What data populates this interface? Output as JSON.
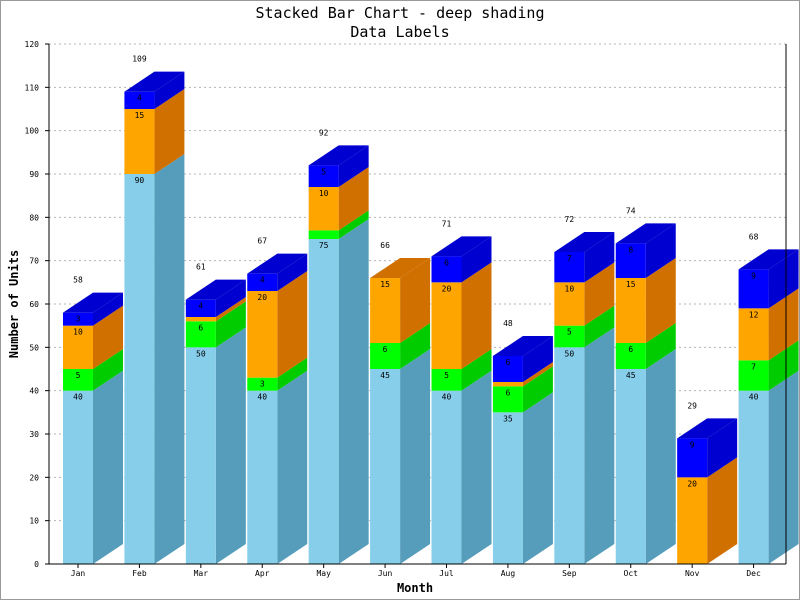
{
  "chart_data": {
    "type": "bar",
    "stacked": true,
    "title": "Stacked Bar Chart - deep shading",
    "subtitle": "Data Labels",
    "xlabel": "Month",
    "ylabel": "Number of Units",
    "ylim": [
      0,
      120
    ],
    "ytick_step": 10,
    "grid": "horizontal dashed",
    "categories": [
      "Jan",
      "Feb",
      "Mar",
      "Apr",
      "May",
      "Jun",
      "Jul",
      "Aug",
      "Sep",
      "Oct",
      "Nov",
      "Dec"
    ],
    "series": [
      {
        "values": [
          40,
          90,
          50,
          40,
          75,
          45,
          40,
          35,
          50,
          45,
          0,
          40
        ],
        "color": "#87CEEB",
        "side_color": "#559DBB",
        "top_color": "#559DBB"
      },
      {
        "values": [
          5,
          0,
          6,
          3,
          2,
          6,
          5,
          6,
          5,
          6,
          0,
          7
        ],
        "color": "#00FF00",
        "side_color": "#00CC00",
        "top_color": "#00CC00"
      },
      {
        "values": [
          10,
          15,
          1,
          20,
          10,
          15,
          20,
          1,
          10,
          15,
          20,
          12
        ],
        "color": "#FFA500",
        "side_color": "#D07000",
        "top_color": "#D07000"
      },
      {
        "values": [
          3,
          4,
          4,
          4,
          5,
          0,
          6,
          6,
          7,
          8,
          9,
          9
        ],
        "color": "#0000FF",
        "side_color": "#0000D0",
        "top_color": "#0000D0"
      }
    ],
    "totals": [
      58,
      109,
      61,
      67,
      92,
      66,
      71,
      48,
      72,
      74,
      29,
      68
    ]
  }
}
